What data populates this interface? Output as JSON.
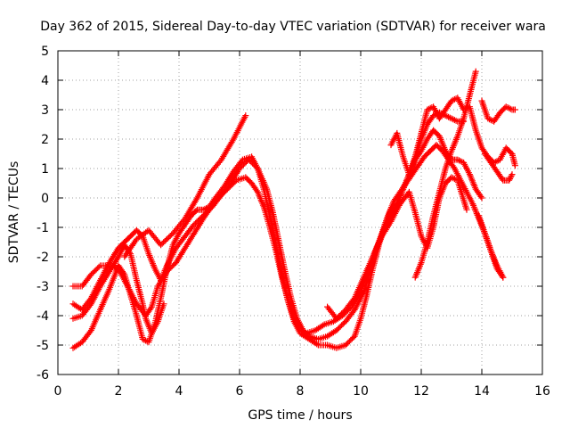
{
  "chart_data": {
    "type": "scatter",
    "title": "Day 362 of 2015, Sidereal Day-to-day VTEC variation (SDTVAR) for receiver wara",
    "xlabel": "GPS time / hours",
    "ylabel": "SDTVAR / TECUs",
    "xlim": [
      0,
      16
    ],
    "ylim": [
      -6,
      5
    ],
    "xticks": [
      "0",
      "2",
      "4",
      "6",
      "8",
      "10",
      "12",
      "14",
      "16"
    ],
    "yticks": [
      "5",
      "4",
      "3",
      "2",
      "1",
      "0",
      "-1",
      "-2",
      "-3",
      "-4",
      "-5",
      "-6"
    ],
    "grid": true,
    "marker": "+",
    "color": "#ff0000",
    "series": [
      {
        "points": [
          [
            0.5,
            -3.0
          ],
          [
            0.8,
            -3.0
          ],
          [
            1.1,
            -2.6
          ],
          [
            1.4,
            -2.3
          ],
          [
            1.7,
            -2.3
          ],
          [
            2.0,
            -2.4
          ],
          [
            2.3,
            -3.0
          ],
          [
            2.6,
            -3.6
          ],
          [
            2.9,
            -4.0
          ],
          [
            3.1,
            -3.7
          ],
          [
            3.3,
            -3.0
          ],
          [
            3.6,
            -2.5
          ],
          [
            3.9,
            -2.2
          ],
          [
            4.2,
            -1.7
          ],
          [
            4.5,
            -1.2
          ],
          [
            4.8,
            -0.7
          ],
          [
            5.0,
            -0.4
          ],
          [
            5.3,
            0.0
          ],
          [
            5.6,
            0.3
          ],
          [
            5.9,
            0.6
          ],
          [
            6.2,
            0.7
          ],
          [
            6.4,
            0.5
          ],
          [
            6.6,
            0.2
          ],
          [
            6.8,
            -0.3
          ],
          [
            7.0,
            -1.0
          ],
          [
            7.2,
            -1.8
          ],
          [
            7.4,
            -2.7
          ],
          [
            7.6,
            -3.5
          ],
          [
            7.8,
            -4.1
          ],
          [
            8.0,
            -4.5
          ],
          [
            8.2,
            -4.6
          ],
          [
            8.5,
            -4.5
          ],
          [
            8.8,
            -4.3
          ],
          [
            9.1,
            -4.2
          ],
          [
            9.4,
            -4.0
          ],
          [
            9.7,
            -3.7
          ],
          [
            10.0,
            -3.2
          ],
          [
            10.2,
            -2.6
          ],
          [
            10.4,
            -2.0
          ],
          [
            10.6,
            -1.5
          ],
          [
            10.8,
            -1.0
          ],
          [
            11.0,
            -0.6
          ],
          [
            11.2,
            -0.2
          ],
          [
            11.4,
            0.3
          ],
          [
            11.6,
            0.8
          ],
          [
            11.8,
            1.4
          ],
          [
            12.0,
            2.0
          ],
          [
            12.2,
            2.5
          ],
          [
            12.4,
            2.8
          ],
          [
            12.6,
            2.9
          ],
          [
            12.8,
            2.8
          ],
          [
            13.0,
            2.7
          ],
          [
            13.2,
            2.6
          ],
          [
            13.4,
            2.6
          ]
        ]
      },
      {
        "points": [
          [
            0.5,
            -3.6
          ],
          [
            0.8,
            -3.8
          ],
          [
            1.1,
            -3.4
          ],
          [
            1.4,
            -2.8
          ],
          [
            1.7,
            -2.2
          ],
          [
            2.0,
            -1.7
          ],
          [
            2.2,
            -1.5
          ],
          [
            2.4,
            -1.3
          ],
          [
            2.6,
            -1.1
          ],
          [
            2.8,
            -1.3
          ],
          [
            3.0,
            -1.9
          ],
          [
            3.2,
            -2.4
          ],
          [
            3.4,
            -2.8
          ],
          [
            3.6,
            -2.3
          ],
          [
            3.9,
            -1.7
          ],
          [
            4.2,
            -1.3
          ],
          [
            4.5,
            -0.9
          ],
          [
            4.8,
            -0.6
          ],
          [
            5.1,
            -0.3
          ],
          [
            5.4,
            0.1
          ],
          [
            5.7,
            0.5
          ],
          [
            6.0,
            1.0
          ],
          [
            6.3,
            1.3
          ],
          [
            6.6,
            1.0
          ],
          [
            6.9,
            0.3
          ],
          [
            7.1,
            -0.5
          ],
          [
            7.3,
            -1.5
          ],
          [
            7.5,
            -2.5
          ],
          [
            7.7,
            -3.4
          ],
          [
            7.9,
            -4.1
          ],
          [
            8.1,
            -4.5
          ],
          [
            8.3,
            -4.7
          ],
          [
            8.6,
            -4.8
          ],
          [
            8.9,
            -4.7
          ],
          [
            9.2,
            -4.5
          ],
          [
            9.5,
            -4.2
          ],
          [
            9.8,
            -3.8
          ],
          [
            10.1,
            -3.2
          ],
          [
            10.3,
            -2.5
          ],
          [
            10.5,
            -1.8
          ],
          [
            10.7,
            -1.2
          ],
          [
            10.9,
            -0.6
          ],
          [
            11.1,
            -0.1
          ],
          [
            11.3,
            0.2
          ],
          [
            11.5,
            0.5
          ],
          [
            11.7,
            0.8
          ],
          [
            11.9,
            1.1
          ],
          [
            12.1,
            1.4
          ],
          [
            12.3,
            1.6
          ],
          [
            12.5,
            1.8
          ],
          [
            12.7,
            1.6
          ],
          [
            12.9,
            1.3
          ],
          [
            13.1,
            1.0
          ],
          [
            13.3,
            0.6
          ],
          [
            13.5,
            0.2
          ],
          [
            13.7,
            -0.2
          ],
          [
            13.9,
            -0.7
          ],
          [
            14.1,
            -1.2
          ],
          [
            14.3,
            -1.8
          ],
          [
            14.5,
            -2.4
          ],
          [
            14.7,
            -2.7
          ]
        ]
      },
      {
        "points": [
          [
            0.5,
            -4.1
          ],
          [
            0.8,
            -4.0
          ],
          [
            1.1,
            -3.6
          ],
          [
            1.4,
            -3.0
          ],
          [
            1.7,
            -2.5
          ],
          [
            2.0,
            -2.0
          ],
          [
            2.2,
            -1.6
          ],
          [
            2.4,
            -1.9
          ],
          [
            2.6,
            -2.8
          ],
          [
            2.8,
            -3.6
          ],
          [
            2.9,
            -4.1
          ],
          [
            3.1,
            -4.6
          ],
          [
            3.3,
            -4.2
          ],
          [
            3.5,
            -3.6
          ]
        ]
      },
      {
        "points": [
          [
            0.5,
            -5.1
          ],
          [
            0.8,
            -4.9
          ],
          [
            1.1,
            -4.5
          ],
          [
            1.4,
            -3.8
          ],
          [
            1.7,
            -3.1
          ],
          [
            2.0,
            -2.3
          ],
          [
            2.2,
            -2.6
          ],
          [
            2.4,
            -3.3
          ],
          [
            2.6,
            -4.0
          ],
          [
            2.8,
            -4.8
          ],
          [
            3.0,
            -4.9
          ],
          [
            3.2,
            -4.3
          ],
          [
            3.4,
            -3.4
          ],
          [
            3.6,
            -2.4
          ],
          [
            3.8,
            -1.6
          ],
          [
            4.0,
            -1.2
          ],
          [
            4.2,
            -0.9
          ],
          [
            4.4,
            -0.6
          ],
          [
            4.6,
            -0.4
          ],
          [
            4.8,
            -0.4
          ],
          [
            5.0,
            -0.3
          ],
          [
            5.2,
            0.0
          ],
          [
            5.5,
            0.4
          ],
          [
            5.8,
            0.9
          ],
          [
            6.1,
            1.3
          ],
          [
            6.4,
            1.4
          ],
          [
            6.6,
            1.0
          ],
          [
            6.8,
            0.3
          ],
          [
            7.0,
            -0.6
          ],
          [
            7.2,
            -1.6
          ],
          [
            7.4,
            -2.6
          ],
          [
            7.6,
            -3.5
          ],
          [
            7.8,
            -4.2
          ],
          [
            8.0,
            -4.6
          ],
          [
            8.3,
            -4.8
          ],
          [
            8.6,
            -5.0
          ],
          [
            8.9,
            -5.0
          ],
          [
            9.2,
            -5.1
          ],
          [
            9.5,
            -5.0
          ],
          [
            9.8,
            -4.7
          ],
          [
            10.0,
            -4.1
          ],
          [
            10.2,
            -3.3
          ],
          [
            10.4,
            -2.4
          ],
          [
            10.6,
            -1.6
          ],
          [
            10.8,
            -0.9
          ],
          [
            11.0,
            -0.4
          ],
          [
            11.2,
            -0.2
          ],
          [
            11.4,
            0.3
          ],
          [
            11.6,
            0.8
          ],
          [
            11.8,
            1.3
          ],
          [
            12.0,
            1.6
          ],
          [
            12.2,
            2.0
          ],
          [
            12.4,
            2.3
          ],
          [
            12.6,
            2.1
          ],
          [
            12.8,
            1.6
          ],
          [
            13.0,
            1.3
          ],
          [
            13.2,
            1.3
          ],
          [
            13.4,
            1.2
          ],
          [
            13.6,
            0.8
          ],
          [
            13.8,
            0.3
          ],
          [
            14.0,
            0.0
          ]
        ]
      },
      {
        "points": [
          [
            2.2,
            -2.0
          ],
          [
            2.6,
            -1.4
          ],
          [
            3.0,
            -1.1
          ],
          [
            3.4,
            -1.6
          ],
          [
            3.8,
            -1.2
          ],
          [
            4.2,
            -0.7
          ],
          [
            4.6,
            0.0
          ],
          [
            5.0,
            0.8
          ],
          [
            5.4,
            1.3
          ],
          [
            5.8,
            2.0
          ],
          [
            6.2,
            2.8
          ]
        ]
      },
      {
        "points": [
          [
            8.9,
            -3.7
          ],
          [
            9.2,
            -4.1
          ],
          [
            9.5,
            -3.8
          ],
          [
            9.8,
            -3.4
          ],
          [
            10.1,
            -2.7
          ],
          [
            10.4,
            -2.0
          ],
          [
            10.7,
            -1.3
          ],
          [
            11.0,
            -0.8
          ],
          [
            11.3,
            -0.2
          ],
          [
            11.6,
            0.2
          ],
          [
            11.8,
            -0.5
          ],
          [
            12.0,
            -1.3
          ],
          [
            12.2,
            -1.7
          ],
          [
            12.4,
            -1.0
          ],
          [
            12.6,
            0.0
          ],
          [
            12.8,
            0.5
          ],
          [
            13.0,
            0.7
          ],
          [
            13.2,
            0.6
          ],
          [
            13.5,
            -0.4
          ]
        ]
      },
      {
        "points": [
          [
            11.8,
            -2.7
          ],
          [
            12.0,
            -2.2
          ],
          [
            12.2,
            -1.5
          ],
          [
            12.4,
            -0.6
          ],
          [
            12.6,
            0.2
          ],
          [
            12.8,
            1.0
          ],
          [
            13.0,
            1.6
          ],
          [
            13.2,
            2.1
          ],
          [
            13.4,
            2.7
          ],
          [
            13.6,
            3.5
          ],
          [
            13.8,
            4.3
          ]
        ]
      },
      {
        "points": [
          [
            11.0,
            1.8
          ],
          [
            11.2,
            2.2
          ],
          [
            11.4,
            1.4
          ],
          [
            11.6,
            0.8
          ],
          [
            11.8,
            1.4
          ],
          [
            12.0,
            2.2
          ],
          [
            12.2,
            3.0
          ],
          [
            12.4,
            3.1
          ],
          [
            12.6,
            2.7
          ],
          [
            12.8,
            3.0
          ],
          [
            13.0,
            3.3
          ],
          [
            13.2,
            3.4
          ],
          [
            13.4,
            3.0
          ],
          [
            13.6,
            3.1
          ],
          [
            13.8,
            2.3
          ],
          [
            14.0,
            1.7
          ],
          [
            14.2,
            1.4
          ],
          [
            14.4,
            1.2
          ],
          [
            14.6,
            1.3
          ],
          [
            14.8,
            1.7
          ],
          [
            15.0,
            1.5
          ],
          [
            15.1,
            1.1
          ]
        ]
      },
      {
        "points": [
          [
            14.0,
            3.3
          ],
          [
            14.2,
            2.7
          ],
          [
            14.4,
            2.6
          ],
          [
            14.6,
            2.9
          ],
          [
            14.8,
            3.1
          ],
          [
            15.0,
            3.0
          ],
          [
            15.1,
            3.0
          ]
        ]
      },
      {
        "points": [
          [
            14.1,
            1.5
          ],
          [
            14.3,
            1.2
          ],
          [
            14.5,
            0.9
          ],
          [
            14.7,
            0.6
          ],
          [
            14.9,
            0.6
          ],
          [
            15.0,
            0.8
          ]
        ]
      },
      {
        "points": [
          [
            13.9,
            -0.6
          ],
          [
            14.1,
            -1.2
          ],
          [
            14.3,
            -1.8
          ],
          [
            14.5,
            -2.3
          ],
          [
            14.7,
            -2.7
          ]
        ]
      }
    ]
  }
}
